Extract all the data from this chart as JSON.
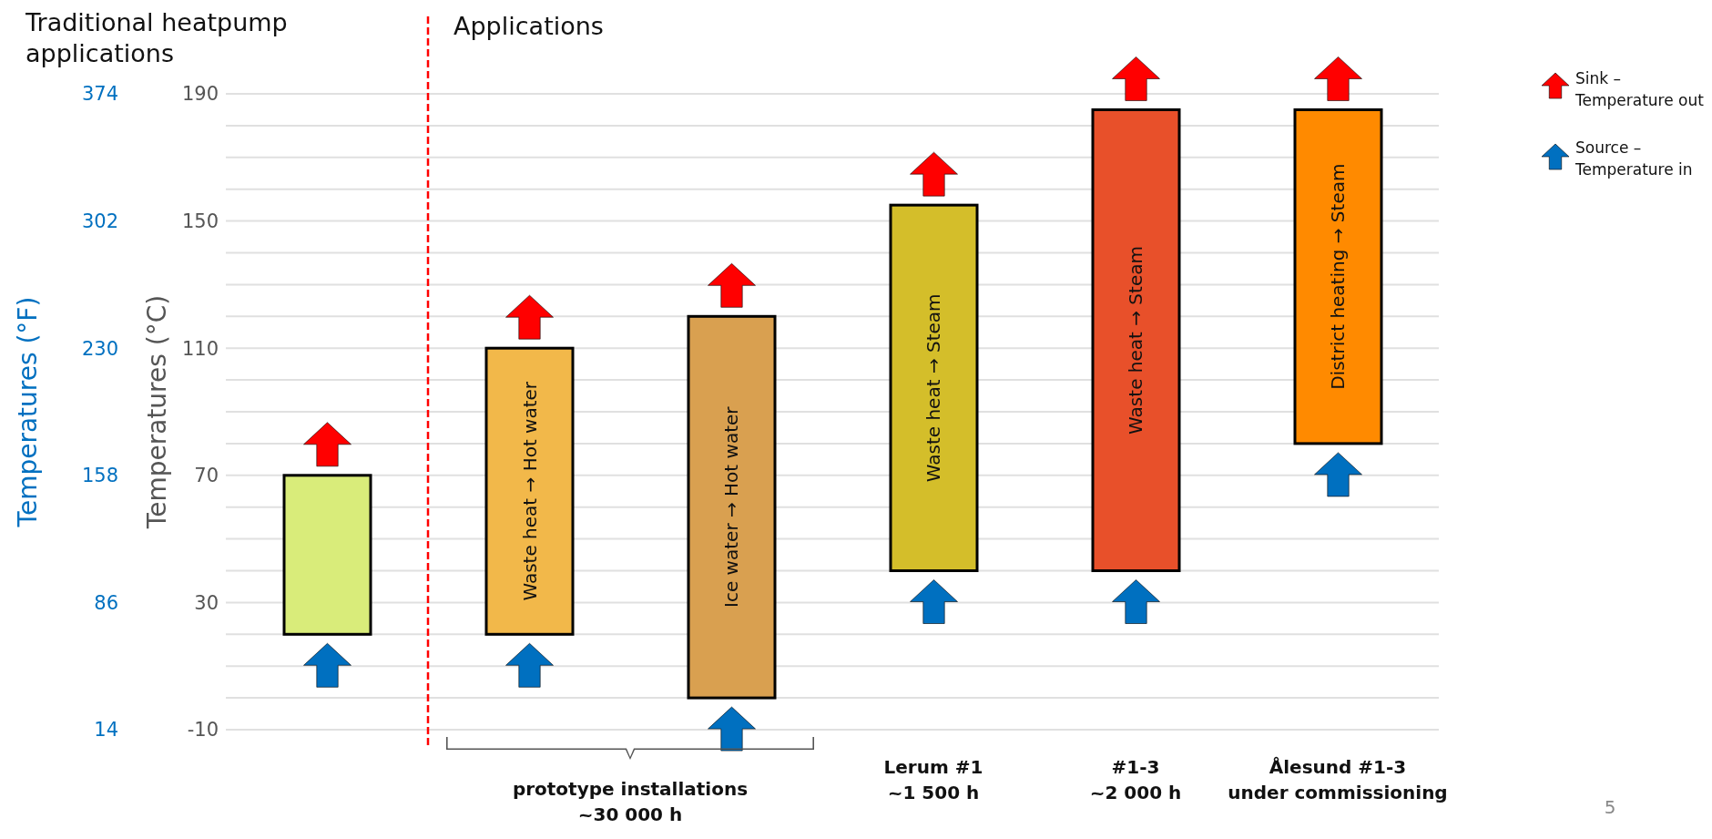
{
  "chart_data": {
    "type": "bar",
    "categories": [
      null,
      null,
      null,
      "Lerum #1\n~1 500 h",
      "#1-3\n~2 000 h",
      "Ålesund #1-3\nunder commissioning"
    ],
    "base": [
      20,
      20,
      0,
      40,
      40,
      80
    ],
    "values": [
      50,
      90,
      120,
      115,
      145,
      105
    ],
    "colors": [
      "#d9ec7a",
      "#f2b84a",
      "#d9a050",
      "#d4be2a",
      "#e8502a",
      "#ff8a00"
    ],
    "value_labels": [
      null,
      "Waste heat → Hot water",
      "Ice water → Hot water",
      "Waste heat → Steam",
      "Waste heat → Steam",
      "District heating → Steam"
    ],
    "ylabel": "Temperatures (°C)",
    "y2label": "Temperatures (°F)",
    "ylim": [
      -10,
      190
    ],
    "yticks": [
      -10,
      {
        "value": 0,
        "label": null
      },
      {
        "value": 10,
        "label": null
      },
      {
        "value": 20,
        "label": null
      },
      30,
      {
        "value": 40,
        "label": null
      },
      {
        "value": 50,
        "label": null
      },
      {
        "value": 60,
        "label": null
      },
      70,
      {
        "value": 80,
        "label": null
      },
      {
        "value": 90,
        "label": null
      },
      {
        "value": 100,
        "label": null
      },
      110,
      {
        "value": 120,
        "label": null
      },
      {
        "value": 130,
        "label": null
      },
      {
        "value": 140,
        "label": null
      },
      150,
      {
        "value": 160,
        "label": null
      },
      {
        "value": 170,
        "label": null
      },
      {
        "value": 180,
        "label": null
      },
      190
    ],
    "y2lim": [
      14,
      374
    ],
    "y2ticks": [
      14,
      86,
      158,
      230,
      302,
      374
    ],
    "grid": "y",
    "annotations": [
      "Traditional heatpump applications",
      "Applications",
      "prototype installations\n~30 000 h",
      "Sink –\nTemperature out",
      "Source –\nTemperature in",
      "5"
    ]
  }
}
